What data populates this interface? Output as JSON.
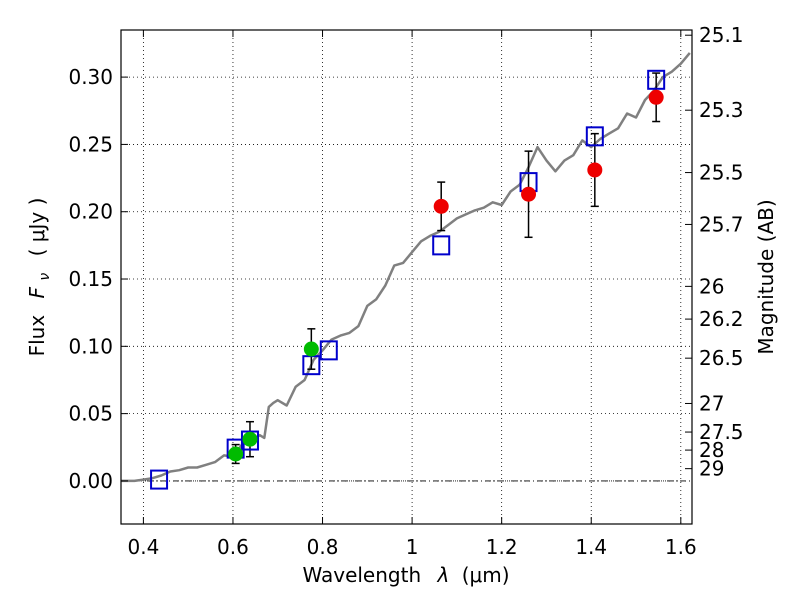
{
  "chart_data": {
    "type": "scatter",
    "x_axis": {
      "label_prefix": "Wavelength",
      "label_math": "λ",
      "label_unit": "(μm)",
      "lim": [
        0.35,
        1.625
      ],
      "ticks": [
        0.4,
        0.6,
        0.8,
        1.0,
        1.2,
        1.4,
        1.6
      ],
      "tick_labels": [
        "0.4",
        "0.6",
        "0.8",
        "1",
        "1.2",
        "1.4",
        "1.6"
      ]
    },
    "y_axis": {
      "label_prefix": "Flux",
      "label_math": "F",
      "label_math_sub": "ν",
      "label_unit": "( μJy )",
      "lim": [
        -0.032,
        0.335
      ],
      "ticks": [
        0.0,
        0.05,
        0.1,
        0.15,
        0.2,
        0.25,
        0.3
      ],
      "tick_labels": [
        "0.00",
        "0.05",
        "0.10",
        "0.15",
        "0.20",
        "0.25",
        "0.30"
      ]
    },
    "y2_axis": {
      "label": "Magnitude (AB)",
      "ticks": [
        25.1,
        25.3,
        25.5,
        25.7,
        26,
        26.2,
        26.5,
        27,
        27.5,
        28,
        29
      ],
      "tick_labels": [
        "25.1",
        "25.3",
        "25.5",
        "25.7",
        "26",
        "26.2",
        "26.5",
        "27",
        "27.5",
        "28",
        "29"
      ]
    },
    "grid": true,
    "zero_line": true,
    "series": [
      {
        "kind": "model_spectrum",
        "color": "#808080",
        "x": [
          0.35,
          0.38,
          0.4,
          0.42,
          0.44,
          0.46,
          0.48,
          0.5,
          0.52,
          0.54,
          0.56,
          0.58,
          0.6,
          0.62,
          0.64,
          0.66,
          0.67,
          0.68,
          0.69,
          0.7,
          0.72,
          0.74,
          0.76,
          0.78,
          0.8,
          0.82,
          0.84,
          0.86,
          0.88,
          0.9,
          0.92,
          0.94,
          0.96,
          0.98,
          1.0,
          1.02,
          1.04,
          1.06,
          1.08,
          1.1,
          1.12,
          1.14,
          1.16,
          1.18,
          1.2,
          1.22,
          1.24,
          1.26,
          1.28,
          1.3,
          1.32,
          1.34,
          1.36,
          1.38,
          1.4,
          1.42,
          1.44,
          1.46,
          1.48,
          1.5,
          1.52,
          1.54,
          1.56,
          1.58,
          1.6,
          1.62
        ],
        "y": [
          0.0,
          0.0,
          0.001,
          0.002,
          0.004,
          0.007,
          0.008,
          0.01,
          0.01,
          0.012,
          0.014,
          0.019,
          0.018,
          0.027,
          0.03,
          0.034,
          0.032,
          0.055,
          0.058,
          0.06,
          0.056,
          0.07,
          0.075,
          0.09,
          0.097,
          0.105,
          0.108,
          0.11,
          0.115,
          0.13,
          0.135,
          0.145,
          0.16,
          0.162,
          0.17,
          0.178,
          0.182,
          0.185,
          0.19,
          0.195,
          0.198,
          0.201,
          0.203,
          0.207,
          0.205,
          0.215,
          0.22,
          0.233,
          0.248,
          0.238,
          0.23,
          0.238,
          0.242,
          0.253,
          0.248,
          0.254,
          0.258,
          0.262,
          0.273,
          0.27,
          0.283,
          0.29,
          0.3,
          0.304,
          0.31,
          0.318
        ]
      },
      {
        "kind": "model_photometry",
        "marker": "square",
        "color": "#0000cc",
        "x": [
          0.435,
          0.606,
          0.638,
          0.775,
          0.814,
          1.065,
          1.26,
          1.408,
          1.545
        ],
        "y": [
          0.001,
          0.024,
          0.03,
          0.086,
          0.097,
          0.175,
          0.222,
          0.256,
          0.298
        ]
      },
      {
        "kind": "observed_optical",
        "marker": "circle",
        "color": "#00bb00",
        "x": [
          0.606,
          0.638,
          0.775
        ],
        "y": [
          0.02,
          0.031,
          0.098
        ],
        "yerr": [
          0.007,
          0.013,
          0.015
        ]
      },
      {
        "kind": "observed_nir",
        "marker": "circle",
        "color": "#ee0000",
        "x": [
          1.065,
          1.26,
          1.408,
          1.545
        ],
        "y": [
          0.204,
          0.213,
          0.231,
          0.285
        ],
        "yerr": [
          0.018,
          0.032,
          0.027,
          0.018
        ]
      }
    ]
  }
}
